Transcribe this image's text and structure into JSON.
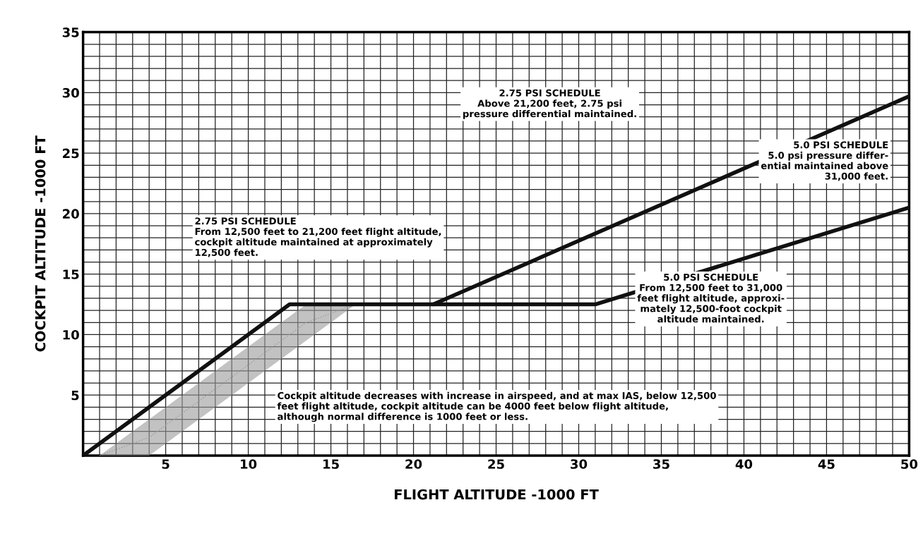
{
  "chart_data": {
    "type": "line",
    "xlabel": "FLIGHT ALTITUDE -1000 FT",
    "ylabel": "COCKPIT ALTITUDE -1000 FT",
    "xlim": [
      0,
      50
    ],
    "ylim": [
      0,
      35
    ],
    "xticks": [
      {
        "value": 0,
        "label": null
      },
      {
        "value": 1,
        "label": null
      },
      {
        "value": 2,
        "label": null
      },
      {
        "value": 3,
        "label": null
      },
      {
        "value": 4,
        "label": null
      },
      5,
      {
        "value": 6,
        "label": null
      },
      {
        "value": 7,
        "label": null
      },
      {
        "value": 8,
        "label": null
      },
      {
        "value": 9,
        "label": null
      },
      10,
      {
        "value": 11,
        "label": null
      },
      {
        "value": 12,
        "label": null
      },
      {
        "value": 13,
        "label": null
      },
      {
        "value": 14,
        "label": null
      },
      15,
      {
        "value": 16,
        "label": null
      },
      {
        "value": 17,
        "label": null
      },
      {
        "value": 18,
        "label": null
      },
      {
        "value": 19,
        "label": null
      },
      20,
      {
        "value": 21,
        "label": null
      },
      {
        "value": 22,
        "label": null
      },
      {
        "value": 23,
        "label": null
      },
      {
        "value": 24,
        "label": null
      },
      25,
      {
        "value": 26,
        "label": null
      },
      {
        "value": 27,
        "label": null
      },
      {
        "value": 28,
        "label": null
      },
      {
        "value": 29,
        "label": null
      },
      30,
      {
        "value": 31,
        "label": null
      },
      {
        "value": 32,
        "label": null
      },
      {
        "value": 33,
        "label": null
      },
      {
        "value": 34,
        "label": null
      },
      35,
      {
        "value": 36,
        "label": null
      },
      {
        "value": 37,
        "label": null
      },
      {
        "value": 38,
        "label": null
      },
      {
        "value": 39,
        "label": null
      },
      40,
      {
        "value": 41,
        "label": null
      },
      {
        "value": 42,
        "label": null
      },
      {
        "value": 43,
        "label": null
      },
      {
        "value": 44,
        "label": null
      },
      45,
      {
        "value": 46,
        "label": null
      },
      {
        "value": 47,
        "label": null
      },
      {
        "value": 48,
        "label": null
      },
      {
        "value": 49,
        "label": null
      },
      50
    ],
    "yticks": [
      {
        "value": 0,
        "label": null
      },
      {
        "value": 1,
        "label": null
      },
      {
        "value": 2,
        "label": null
      },
      {
        "value": 3,
        "label": null
      },
      {
        "value": 4,
        "label": null
      },
      5,
      {
        "value": 6,
        "label": null
      },
      {
        "value": 7,
        "label": null
      },
      {
        "value": 8,
        "label": null
      },
      {
        "value": 9,
        "label": null
      },
      10,
      {
        "value": 11,
        "label": null
      },
      {
        "value": 12,
        "label": null
      },
      {
        "value": 13,
        "label": null
      },
      {
        "value": 14,
        "label": null
      },
      15,
      {
        "value": 16,
        "label": null
      },
      {
        "value": 17,
        "label": null
      },
      {
        "value": 18,
        "label": null
      },
      {
        "value": 19,
        "label": null
      },
      20,
      {
        "value": 21,
        "label": null
      },
      {
        "value": 22,
        "label": null
      },
      {
        "value": 23,
        "label": null
      },
      {
        "value": 24,
        "label": null
      },
      25,
      {
        "value": 26,
        "label": null
      },
      {
        "value": 27,
        "label": null
      },
      {
        "value": 28,
        "label": null
      },
      {
        "value": 29,
        "label": null
      },
      30,
      {
        "value": 31,
        "label": null
      },
      {
        "value": 32,
        "label": null
      },
      {
        "value": 33,
        "label": null
      },
      {
        "value": 34,
        "label": null
      },
      35
    ],
    "grid": true,
    "series": [
      {
        "color": "#9a9a9a",
        "line_style": "dotted",
        "x": [
          1,
          4,
          13.5,
          16.5
        ],
        "values": [
          0,
          1.5,
          11,
          12.5
        ],
        "lower": [
          0,
          0,
          9.5,
          12.5
        ],
        "upper": [
          0,
          3,
          12.5,
          12.5
        ]
      },
      {
        "color": "#111111",
        "x": [
          0,
          12.5,
          21.2,
          50
        ],
        "values": [
          0,
          12.5,
          12.5,
          29.7
        ]
      },
      {
        "color": "#111111",
        "x": [
          21.2,
          31,
          50
        ],
        "values": [
          12.5,
          12.5,
          20.5
        ]
      }
    ],
    "annotations": [
      "2.75 PSI SCHEDULE\nAbove 21,200 feet, 2.75 psi\npressure differential maintained.",
      "5.0 PSI SCHEDULE\n5.0 psi pressure differ-\nential maintained above\n31,000 feet.",
      "2.75 PSI SCHEDULE\nFrom 12,500 feet to 21,200 feet flight altitude,\ncockpit altitude maintained at approximately\n12,500 feet.",
      "5.0 PSI SCHEDULE\nFrom 12,500 feet to 31,000\nfeet flight altitude, approxi-\nmately 12,500-foot cockpit\naltitude maintained.",
      "Cockpit altitude decreases with increase in airspeed, and at max IAS, below 12,500\nfeet flight altitude, cockpit altitude can be 4000 feet below flight altitude,\nalthough normal difference is 1000 feet or less."
    ]
  }
}
